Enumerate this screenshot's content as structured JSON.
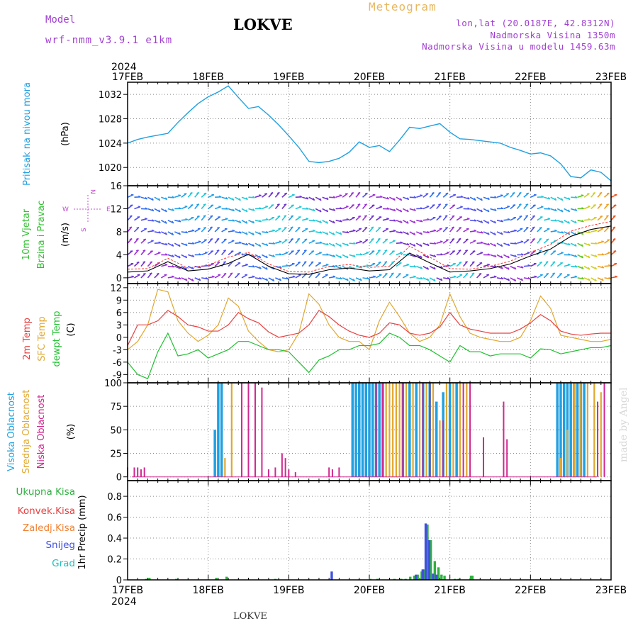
{
  "header": {
    "model_label": "Model",
    "model_name": "wrf-nmm_v3.9.1 e1km",
    "station": "LOKVE",
    "product": "Meteogram",
    "coords": "lon,lat (20.0187E, 42.8312N)",
    "elevation": "Nadmorska Visina 1350m",
    "model_elevation": "Nadmorska Visina u modelu 1459.63m"
  },
  "footer": {
    "station": "LOKVE"
  },
  "credit": "made by Angel",
  "colors": {
    "pressure": "#20a0e0",
    "temp2m": "#e84040",
    "sfc": "#e0a830",
    "dewpt": "#20c030",
    "high": "#20a0e0",
    "mid": "#e0a830",
    "low": "#d02890",
    "total": "#30b040",
    "convective": "#e84040",
    "frozen": "#f08030",
    "snow": "#4050e0",
    "grad": "#20c0c0",
    "wind_label": "#30c030",
    "compass": "#c050d0"
  },
  "chart_data": [
    {
      "type": "line",
      "panel": "pressure",
      "year": "2024",
      "x_ticks": [
        "17FEB",
        "18FEB",
        "19FEB",
        "20FEB",
        "21FEB",
        "22FEB",
        "23FEB"
      ],
      "xlim": [
        "2024-02-17 00",
        "2024-02-23 00"
      ],
      "ylabel_name": "Pritisak na nivou mora",
      "ylabel_unit": "(hPa)",
      "ylim": [
        1017,
        1034
      ],
      "y_ticks": [
        1020,
        1024,
        1028,
        1032
      ],
      "grid": true,
      "series": [
        {
          "x_hours": [
            0,
            3,
            6,
            9,
            12,
            15,
            18,
            21,
            24,
            27,
            30,
            33,
            36,
            39,
            42,
            45,
            48,
            51,
            54,
            57,
            60,
            63,
            66,
            69,
            72,
            75,
            78,
            81,
            84,
            87,
            90,
            93,
            96,
            99,
            102,
            105,
            108,
            111,
            114,
            117,
            120,
            123,
            126,
            129,
            132,
            135,
            138,
            141,
            144
          ],
          "values": [
            1024,
            1024.6,
            1025,
            1025.3,
            1025.6,
            1027.4,
            1029,
            1030.5,
            1031.6,
            1032.4,
            1033.4,
            1031.5,
            1029.7,
            1030,
            1028.6,
            1027,
            1025.2,
            1023.3,
            1021,
            1020.8,
            1021,
            1021.5,
            1022.5,
            1024.2,
            1023.3,
            1023.6,
            1022.6,
            1024.5,
            1026.6,
            1026.4,
            1026.8,
            1027.2,
            1025.8,
            1024.7,
            1024.6,
            1024.4,
            1024.2,
            1024,
            1023.3,
            1022.8,
            1022.2,
            1022.4,
            1021.9,
            1020.6,
            1018.5,
            1018.3,
            1019.6,
            1019.2,
            1017.8
          ]
        }
      ]
    },
    {
      "type": "line",
      "panel": "wind",
      "ylabel_name": "10m Vjetar",
      "ylabel_name2": "Brzina i Pravac",
      "ylabel_unit": "(m/s)",
      "compass": {
        "w": "W",
        "e": "E",
        "n": "N",
        "s": "S"
      },
      "ylim": [
        -1,
        16
      ],
      "y_ticks": [
        0,
        4,
        8,
        12,
        16
      ],
      "series": [
        {
          "name": "speed",
          "x_hours": [
            0,
            6,
            12,
            18,
            24,
            30,
            36,
            42,
            48,
            54,
            60,
            66,
            72,
            78,
            84,
            90,
            96,
            102,
            108,
            114,
            120,
            126,
            132,
            138,
            144
          ],
          "values": [
            1,
            1.2,
            2.8,
            1.2,
            1.5,
            2.5,
            4.1,
            2,
            0.7,
            0.6,
            1.4,
            1.7,
            1.2,
            1.4,
            4.3,
            2.6,
            1,
            1.2,
            1.6,
            2.4,
            3.8,
            5,
            7.2,
            8.4,
            9
          ]
        },
        {
          "name": "gust",
          "x_hours": [
            0,
            6,
            12,
            18,
            24,
            30,
            36,
            42,
            48,
            54,
            60,
            66,
            72,
            78,
            84,
            90,
            96,
            102,
            108,
            114,
            120,
            126,
            132,
            138,
            144
          ],
          "values": [
            1.5,
            1.6,
            3.4,
            1.7,
            2.2,
            3.6,
            4.4,
            2.4,
            1.1,
            1,
            2,
            2.3,
            1.8,
            2,
            5.5,
            3.6,
            1.6,
            1.5,
            2,
            2.9,
            4.4,
            5.8,
            8.1,
            9.1,
            9.8
          ]
        }
      ]
    },
    {
      "type": "line",
      "panel": "temperature",
      "ylabel_unit": "(C)",
      "ylim": [
        -11,
        13
      ],
      "y_ticks": [
        -9,
        -6,
        -3,
        0,
        3,
        6,
        9,
        12
      ],
      "series": [
        {
          "name": "2m Temp",
          "x_hours": [
            0,
            3,
            6,
            9,
            12,
            15,
            18,
            21,
            24,
            27,
            30,
            33,
            36,
            39,
            42,
            45,
            48,
            51,
            54,
            57,
            60,
            63,
            66,
            69,
            72,
            75,
            78,
            81,
            84,
            87,
            90,
            93,
            96,
            99,
            102,
            105,
            108,
            111,
            114,
            117,
            120,
            123,
            126,
            129,
            132,
            135,
            138,
            141,
            144
          ],
          "values": [
            -2,
            3,
            3,
            4,
            6.5,
            5,
            3,
            2.5,
            1.5,
            1.5,
            3,
            6,
            4.5,
            3.5,
            1.3,
            0,
            0.5,
            1,
            3,
            6.5,
            5,
            3,
            1.5,
            0.5,
            0,
            1,
            3.5,
            3,
            1,
            0.5,
            1,
            2.5,
            6,
            3,
            2,
            1.5,
            1,
            1,
            1,
            2,
            3.5,
            5.5,
            4,
            1.5,
            0.8,
            0.5,
            0.8,
            1,
            1
          ]
        },
        {
          "name": "SFC Temp",
          "x_hours": [
            0,
            3,
            6,
            9,
            12,
            15,
            18,
            21,
            24,
            27,
            30,
            33,
            36,
            39,
            42,
            45,
            48,
            51,
            54,
            57,
            60,
            63,
            66,
            69,
            72,
            75,
            78,
            81,
            84,
            87,
            90,
            93,
            96,
            99,
            102,
            105,
            108,
            111,
            114,
            117,
            120,
            123,
            126,
            129,
            132,
            135,
            138,
            141,
            144
          ],
          "values": [
            -3,
            -1,
            3,
            11.6,
            11,
            4,
            1,
            -1,
            0.5,
            3,
            9.5,
            7.5,
            1.5,
            -1,
            -3,
            -3.5,
            -3,
            1,
            10.5,
            8,
            3,
            0,
            -1,
            -1,
            -3,
            4,
            8.5,
            5,
            1,
            -1,
            0,
            3,
            10.5,
            5,
            1,
            0,
            -0.5,
            -1,
            -1,
            0,
            4,
            10,
            7,
            0.5,
            0,
            -0.5,
            -1,
            -1,
            -0.5
          ]
        },
        {
          "name": "dewpt Temp",
          "x_hours": [
            0,
            3,
            6,
            9,
            12,
            15,
            18,
            21,
            24,
            27,
            30,
            33,
            36,
            39,
            42,
            45,
            48,
            51,
            54,
            57,
            60,
            63,
            66,
            69,
            72,
            75,
            78,
            81,
            84,
            87,
            90,
            93,
            96,
            99,
            102,
            105,
            108,
            111,
            114,
            117,
            120,
            123,
            126,
            129,
            132,
            135,
            138,
            141,
            144
          ],
          "values": [
            -6,
            -9,
            -10,
            -3.5,
            1,
            -4.5,
            -4,
            -3,
            -5,
            -4,
            -3,
            -1,
            -1,
            -2,
            -3,
            -3,
            -3.5,
            -6,
            -8.5,
            -5.5,
            -4.5,
            -3,
            -3,
            -2,
            -2,
            -1.5,
            1,
            0,
            -2,
            -2,
            -3,
            -4.5,
            -6,
            -2,
            -3.5,
            -3.5,
            -4.5,
            -4,
            -4,
            -4,
            -5,
            -2.8,
            -3,
            -4,
            -3.5,
            -3,
            -2.5,
            -2.5,
            -2
          ]
        }
      ]
    },
    {
      "type": "bar",
      "panel": "clouds",
      "ylabel_unit": "(%)",
      "ylim": [
        -4,
        100
      ],
      "y_ticks": [
        0,
        25,
        50,
        75,
        100
      ],
      "series": [
        {
          "name": "Visoka Oblacnost",
          "bars": [
            [
              26,
              50
            ],
            [
              27,
              100
            ],
            [
              28,
              100
            ],
            [
              67,
              100
            ],
            [
              68,
              100
            ],
            [
              69,
              100
            ],
            [
              70,
              100
            ],
            [
              71,
              100
            ],
            [
              72,
              100
            ],
            [
              73,
              100
            ],
            [
              74,
              100
            ],
            [
              75,
              100
            ],
            [
              76,
              100
            ],
            [
              82,
              100
            ],
            [
              84,
              100
            ],
            [
              86,
              100
            ],
            [
              88,
              100
            ],
            [
              90,
              100
            ],
            [
              92,
              80
            ],
            [
              94,
              90
            ],
            [
              96,
              100
            ],
            [
              98,
              100
            ],
            [
              128,
              100
            ],
            [
              129,
              100
            ],
            [
              130,
              100
            ],
            [
              131,
              100
            ],
            [
              132,
              100
            ],
            [
              133,
              100
            ],
            [
              134,
              100
            ],
            [
              135,
              100
            ],
            [
              136,
              100
            ]
          ]
        },
        {
          "name": "Srednja Oblacnost",
          "bars": [
            [
              29,
              20
            ],
            [
              31,
              100
            ],
            [
              77,
              100
            ],
            [
              78,
              100
            ],
            [
              79,
              100
            ],
            [
              80,
              100
            ],
            [
              81,
              100
            ],
            [
              83,
              100
            ],
            [
              85,
              100
            ],
            [
              87,
              100
            ],
            [
              89,
              100
            ],
            [
              91,
              100
            ],
            [
              93,
              60
            ],
            [
              95,
              100
            ],
            [
              97,
              100
            ],
            [
              99,
              100
            ],
            [
              101,
              100
            ],
            [
              129,
              20
            ],
            [
              131,
              50
            ],
            [
              133,
              100
            ],
            [
              135,
              100
            ],
            [
              137,
              100
            ],
            [
              139,
              100
            ],
            [
              141,
              90
            ]
          ]
        },
        {
          "name": "Niska Oblacnost",
          "bars": [
            [
              0,
              10
            ],
            [
              2,
              10
            ],
            [
              3,
              10
            ],
            [
              4,
              8
            ],
            [
              5,
              10
            ],
            [
              34,
              100
            ],
            [
              36,
              100
            ],
            [
              38,
              100
            ],
            [
              40,
              95
            ],
            [
              42,
              8
            ],
            [
              44,
              10
            ],
            [
              46,
              25
            ],
            [
              47,
              20
            ],
            [
              48,
              8
            ],
            [
              50,
              5
            ],
            [
              60,
              10
            ],
            [
              61,
              8
            ],
            [
              63,
              10
            ],
            [
              74,
              100
            ],
            [
              76,
              100
            ],
            [
              82,
              100
            ],
            [
              88,
              100
            ],
            [
              90,
              100
            ],
            [
              94,
              60
            ],
            [
              100,
              100
            ],
            [
              102,
              100
            ],
            [
              106,
              42
            ],
            [
              112,
              80
            ],
            [
              113,
              40
            ],
            [
              140,
              80
            ],
            [
              142,
              100
            ]
          ]
        }
      ]
    },
    {
      "type": "bar",
      "panel": "precipitation",
      "ylabel_unit": "1hr Precip (mm)",
      "ylim": [
        0,
        0.95
      ],
      "y_ticks": [
        0,
        0.2,
        0.4,
        0.6,
        0.8
      ],
      "series": [
        {
          "name": "Ukupna Kisa",
          "bars": [
            [
              5.5,
              0.01
            ],
            [
              6.5,
              0.02
            ],
            [
              14.5,
              0.01
            ],
            [
              26.4,
              0.02
            ],
            [
              29.5,
              0.03
            ],
            [
              44,
              0.01
            ],
            [
              69,
              0.005
            ],
            [
              72.3,
              0.01
            ],
            [
              74.4,
              0.01
            ],
            [
              79.5,
              0.01
            ],
            [
              81.5,
              0.01
            ],
            [
              82.8,
              0.01
            ],
            [
              84.2,
              0.03
            ],
            [
              85.4,
              0.04
            ],
            [
              86.4,
              0.05
            ],
            [
              87.6,
              0.08
            ],
            [
              88.2,
              0.1
            ],
            [
              89.3,
              0.53
            ],
            [
              90.3,
              0.38
            ],
            [
              91.5,
              0.18
            ],
            [
              92.6,
              0.12
            ],
            [
              93.5,
              0.05
            ],
            [
              94.4,
              0.04
            ],
            [
              97.5,
              0.01
            ],
            [
              98.6,
              0.01
            ],
            [
              102.3,
              0.04
            ],
            [
              102.7,
              0.04
            ]
          ]
        },
        {
          "name": "Konvek.Kisa",
          "bars": []
        },
        {
          "name": "Zaledj.Kisa",
          "bars": []
        },
        {
          "name": "Snijeg",
          "bars": [
            [
              60.8,
              0.08
            ],
            [
              85.9,
              0.05
            ],
            [
              87.9,
              0.1
            ],
            [
              88.8,
              0.54
            ],
            [
              89.8,
              0.38
            ],
            [
              91.0,
              0.06
            ],
            [
              92.0,
              0.05
            ]
          ]
        },
        {
          "name": "Grad",
          "bars": []
        }
      ]
    }
  ]
}
